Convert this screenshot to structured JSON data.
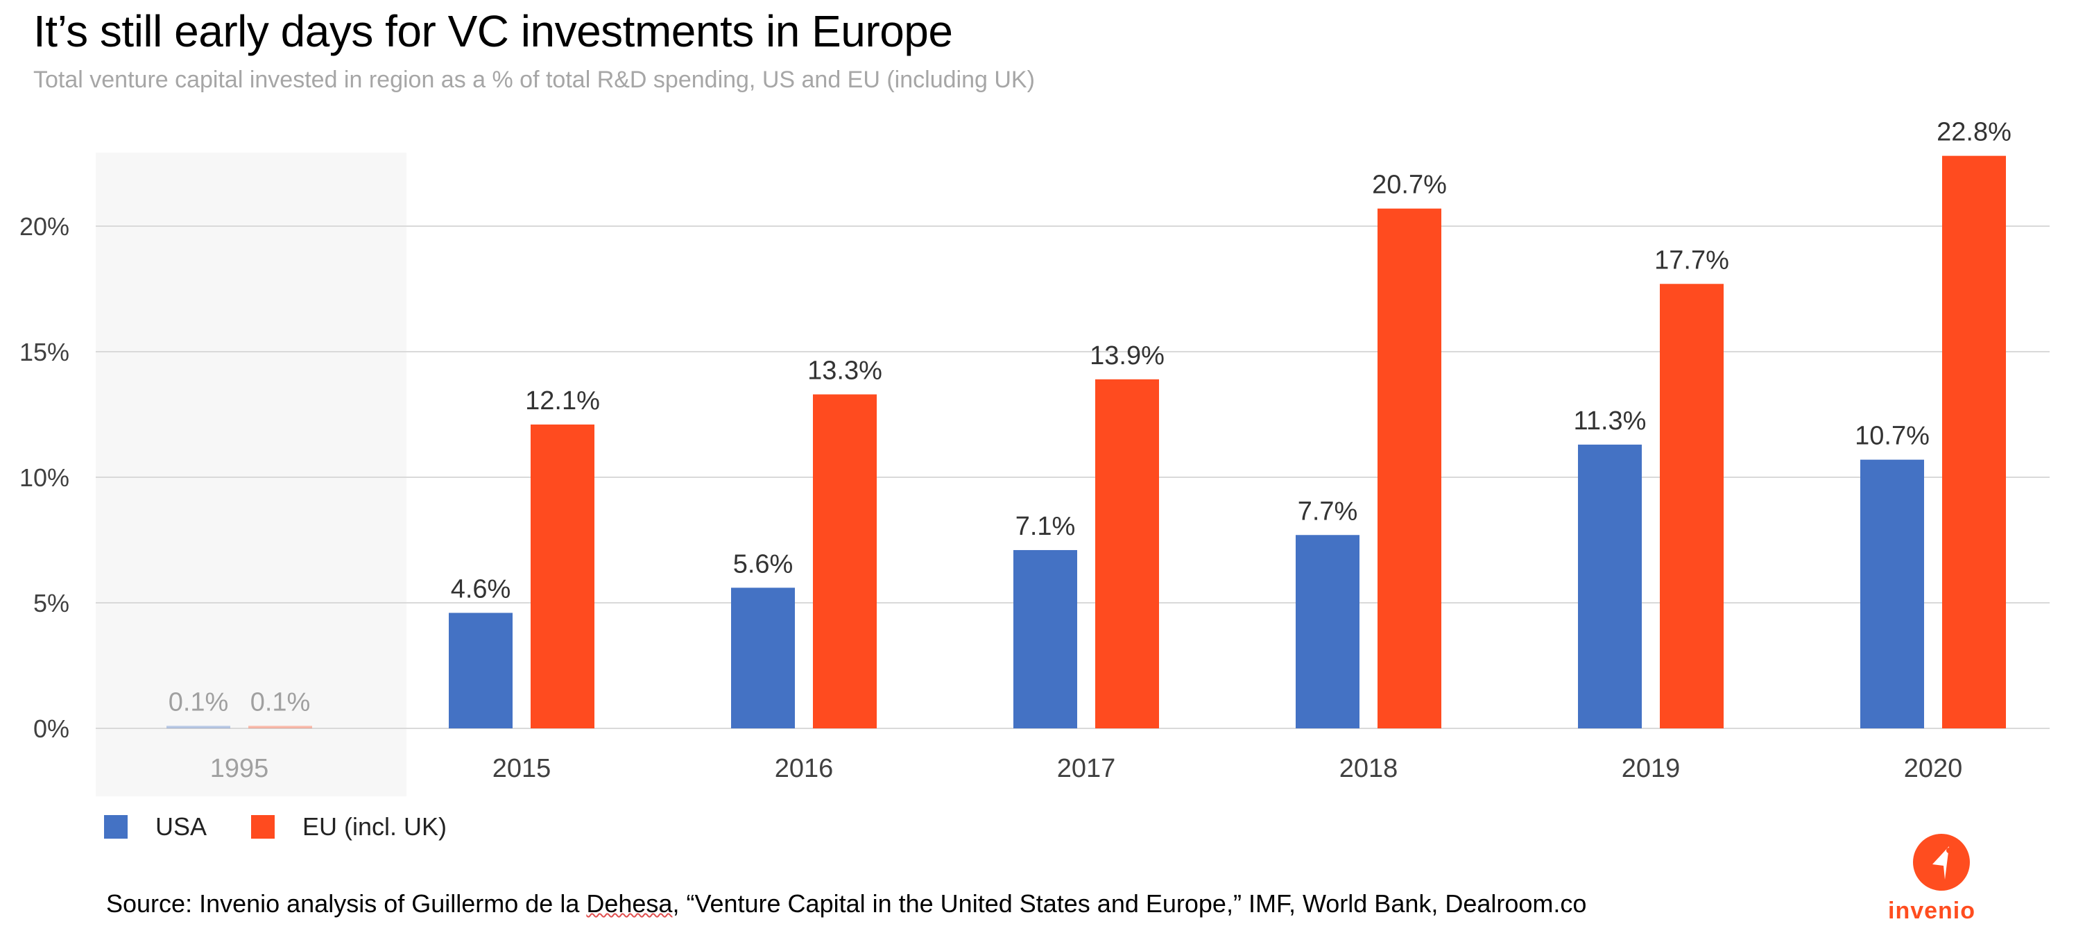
{
  "title": "It’s still early days for VC investments in Europe",
  "subtitle": "Total venture capital invested in region as a % of total R&D spending, US and EU (including UK)",
  "legend": {
    "usa": "USA",
    "eu": "EU (incl. UK)"
  },
  "source": {
    "prefix": "Source:  Invenio analysis of Guillermo de la ",
    "underlined": "Dehesa",
    "suffix": ", “Venture Capital in the United States and Europe,” IMF, World Bank, Dealroom.co"
  },
  "logo": {
    "name": "invenio"
  },
  "colors": {
    "usa": "#4472c4",
    "eu": "#ff4b1f",
    "grid": "#d9d9d9",
    "highlight_band": "#f7f7f7"
  },
  "chart_data": {
    "type": "bar",
    "title": "It’s still early days for VC investments in Europe",
    "subtitle": "Total venture capital invested in region as a % of total R&D spending, US and EU (including UK)",
    "categories": [
      "1995",
      "2015",
      "2016",
      "2017",
      "2018",
      "2019",
      "2020"
    ],
    "series": [
      {
        "name": "USA",
        "values": [
          0.1,
          4.6,
          5.6,
          7.1,
          7.7,
          11.3,
          10.7
        ],
        "labels": [
          "0.1%",
          "4.6%",
          "5.6%",
          "7.1%",
          "7.7%",
          "11.3%",
          "10.7%"
        ]
      },
      {
        "name": "EU (incl. UK)",
        "values": [
          0.1,
          12.1,
          13.3,
          13.9,
          20.7,
          17.7,
          22.8
        ],
        "labels": [
          "0.1%",
          "12.1%",
          "13.3%",
          "13.9%",
          "20.7%",
          "17.7%",
          "22.8%"
        ]
      }
    ],
    "y_ticks": [
      0,
      5,
      10,
      15,
      20
    ],
    "y_tick_labels": [
      "0%",
      "5%",
      "10%",
      "15%",
      "20%"
    ],
    "ylim": [
      0,
      22.8
    ],
    "grid": true,
    "legend_position": "bottom-left",
    "highlighted_category": "1995"
  }
}
